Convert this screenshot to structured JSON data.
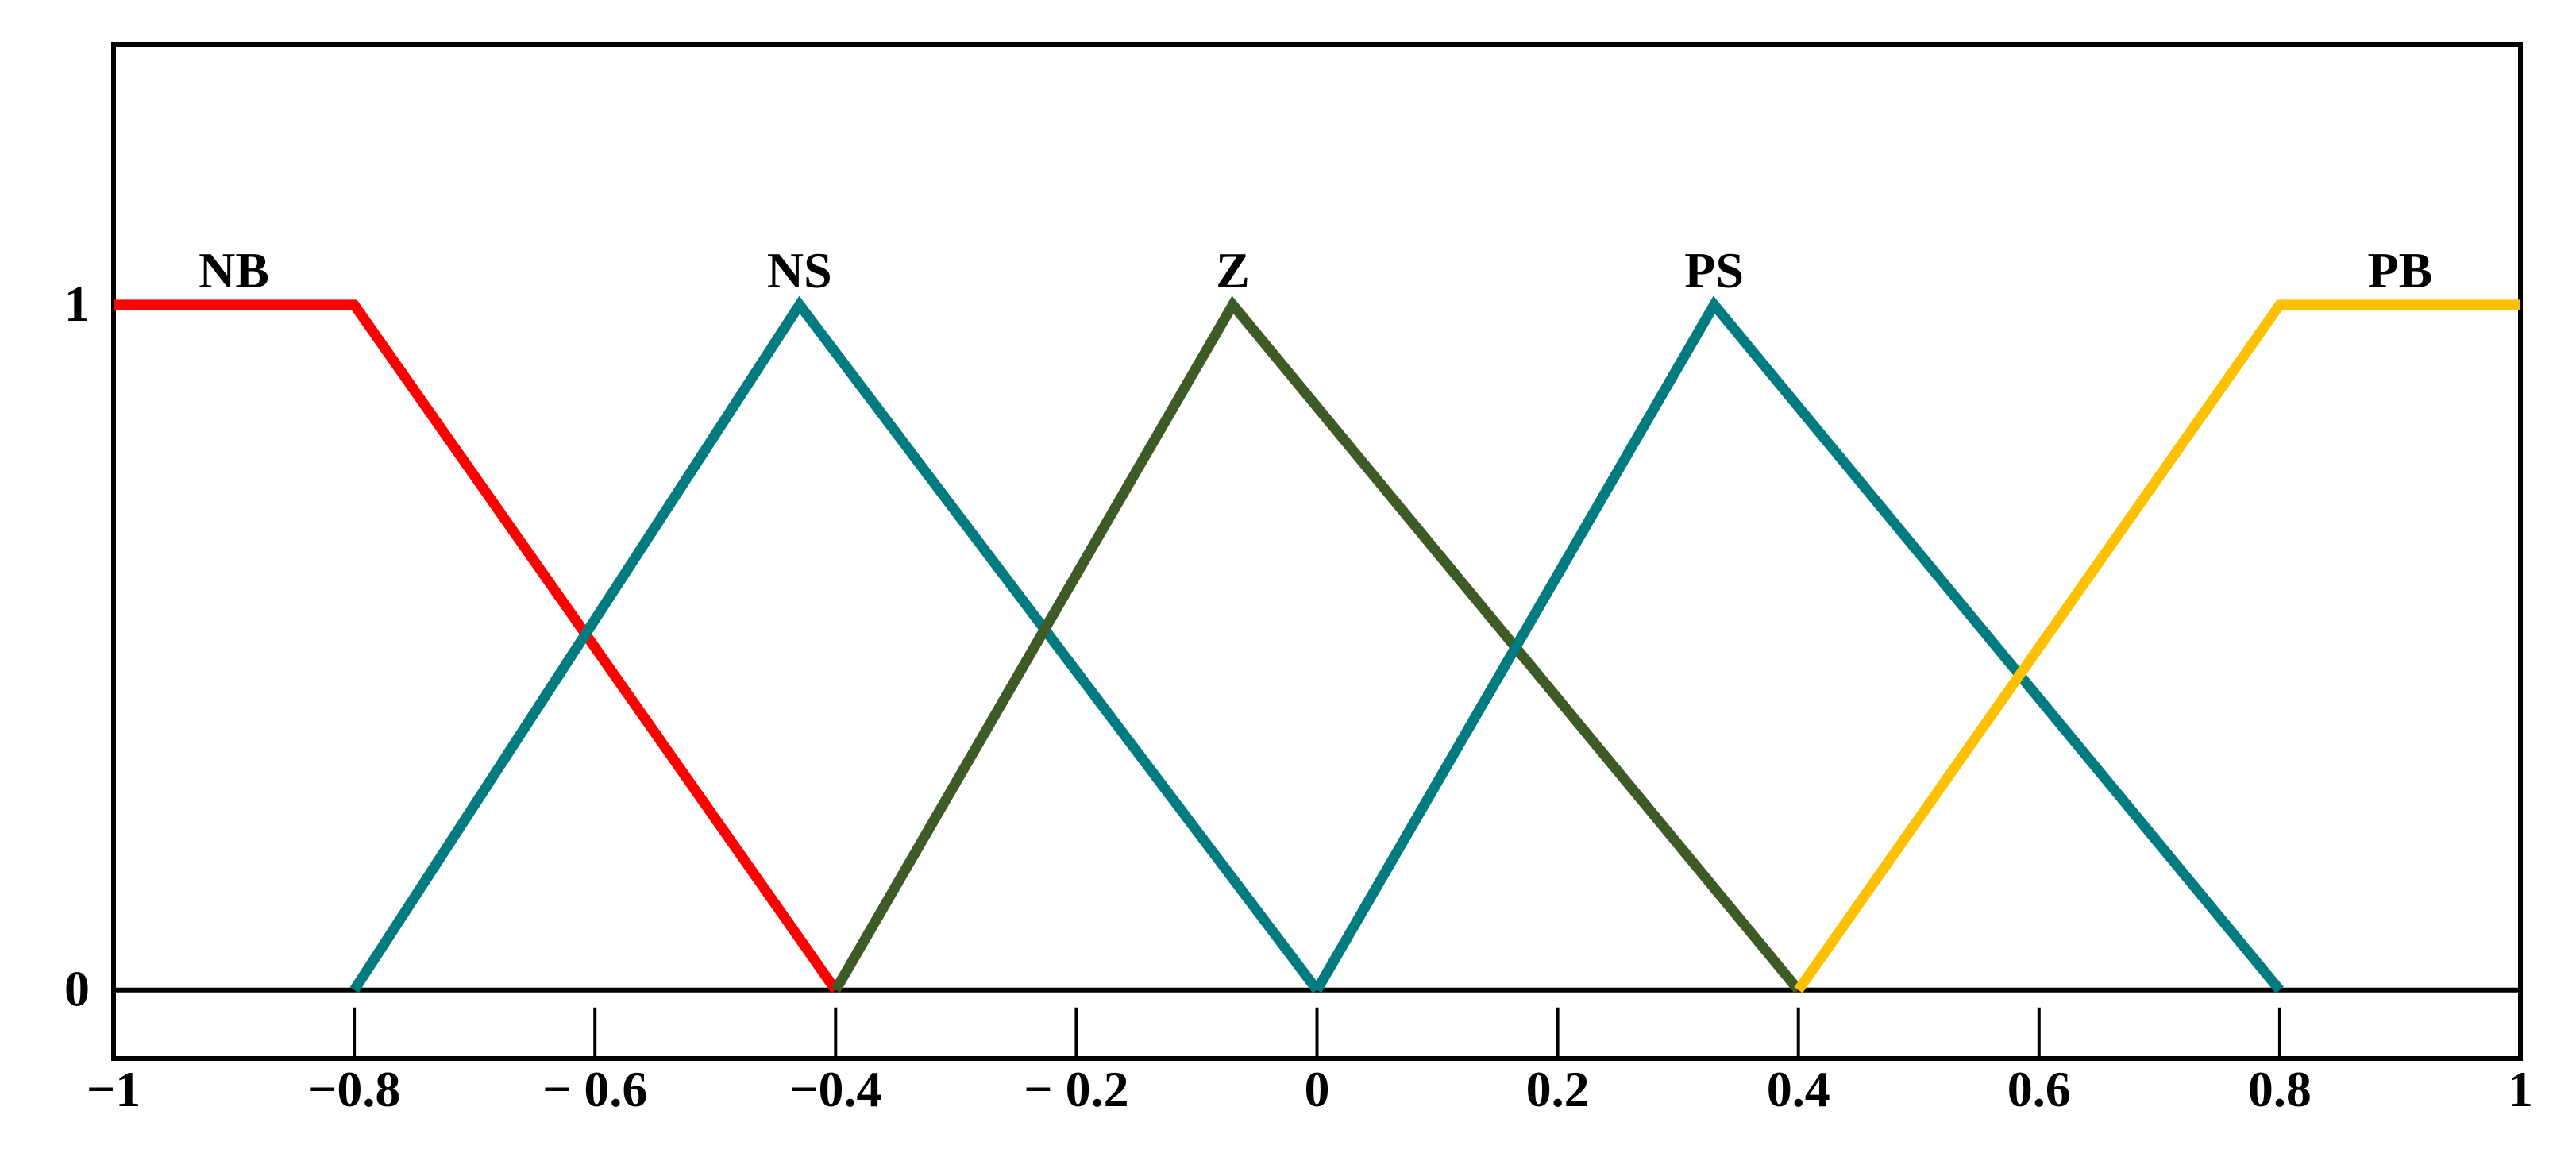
{
  "chart_data": {
    "type": "line",
    "xlim": [
      -1,
      1
    ],
    "ylim": [
      -0.1,
      1.38
    ],
    "xticks": [
      {
        "value": -1,
        "label": "−1"
      },
      {
        "value": -0.8,
        "label": "−0.8"
      },
      {
        "value": -0.6,
        "label": "− 0.6"
      },
      {
        "value": -0.4,
        "label": "−0.4"
      },
      {
        "value": -0.2,
        "label": "− 0.2"
      },
      0,
      0.2,
      0.4,
      0.6,
      0.8,
      1
    ],
    "yticks": [
      0,
      1
    ],
    "series": [
      {
        "name": "NB",
        "color": "#ff0000",
        "x": [
          -1,
          -0.8,
          -0.4
        ],
        "values": [
          1,
          1,
          0
        ]
      },
      {
        "name": "NS",
        "color": "#007b7f",
        "x": [
          -0.8,
          -0.43,
          0
        ],
        "values": [
          0,
          1,
          0
        ]
      },
      {
        "name": "Z",
        "color": "#3d5a27",
        "x": [
          -0.4,
          -0.07,
          0.4
        ],
        "values": [
          0,
          1,
          0
        ]
      },
      {
        "name": "PS",
        "color": "#007b7f",
        "x": [
          0,
          0.33,
          0.8
        ],
        "values": [
          0,
          1,
          0
        ]
      },
      {
        "name": "PB",
        "color": "#ffc000",
        "x": [
          0.4,
          0.8,
          1
        ],
        "values": [
          0,
          1,
          1
        ]
      }
    ]
  }
}
